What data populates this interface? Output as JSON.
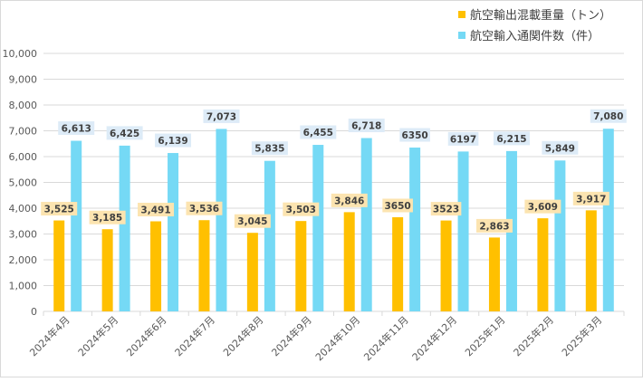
{
  "chart_data": {
    "type": "bar",
    "categories": [
      "2024年4月",
      "2024年5月",
      "2024年6月",
      "2024年7月",
      "2024年8月",
      "2024年9月",
      "2024年10月",
      "2024年11月",
      "2024年12月",
      "2025年1月",
      "2025年2月",
      "2025年3月"
    ],
    "series": [
      {
        "name": "航空輸出混載重量（トン）",
        "color": "#FFC000",
        "label_bg": "#FCE4B0",
        "values": [
          3525,
          3185,
          3491,
          3536,
          3045,
          3503,
          3846,
          3650,
          3523,
          2863,
          3609,
          3917
        ],
        "labels": [
          "3,525",
          "3,185",
          "3,491",
          "3,536",
          "3,045",
          "3,503",
          "3,846",
          "3650",
          "3523",
          "2,863",
          "3,609",
          "3,917"
        ]
      },
      {
        "name": "航空輸入通関件数（件）",
        "color": "#75D9F5",
        "label_bg": "#DDEBF7",
        "values": [
          6613,
          6425,
          6139,
          7073,
          5835,
          6455,
          6718,
          6350,
          6197,
          6215,
          5849,
          7080
        ],
        "labels": [
          "6,613",
          "6,425",
          "6,139",
          "7,073",
          "5,835",
          "6,455",
          "6,718",
          "6350",
          "6197",
          "6,215",
          "5,849",
          "7,080"
        ]
      }
    ],
    "ylim": [
      0,
      10000
    ],
    "yticks": [
      0,
      1000,
      2000,
      3000,
      4000,
      5000,
      6000,
      7000,
      8000,
      9000,
      10000
    ],
    "ytick_labels": [
      "0",
      "1,000",
      "2,000",
      "3,000",
      "4,000",
      "5,000",
      "6,000",
      "7,000",
      "8,000",
      "9,000",
      "10,000"
    ],
    "grid": true,
    "legend_position": "top-right",
    "title": "",
    "xlabel": "",
    "ylabel": ""
  }
}
